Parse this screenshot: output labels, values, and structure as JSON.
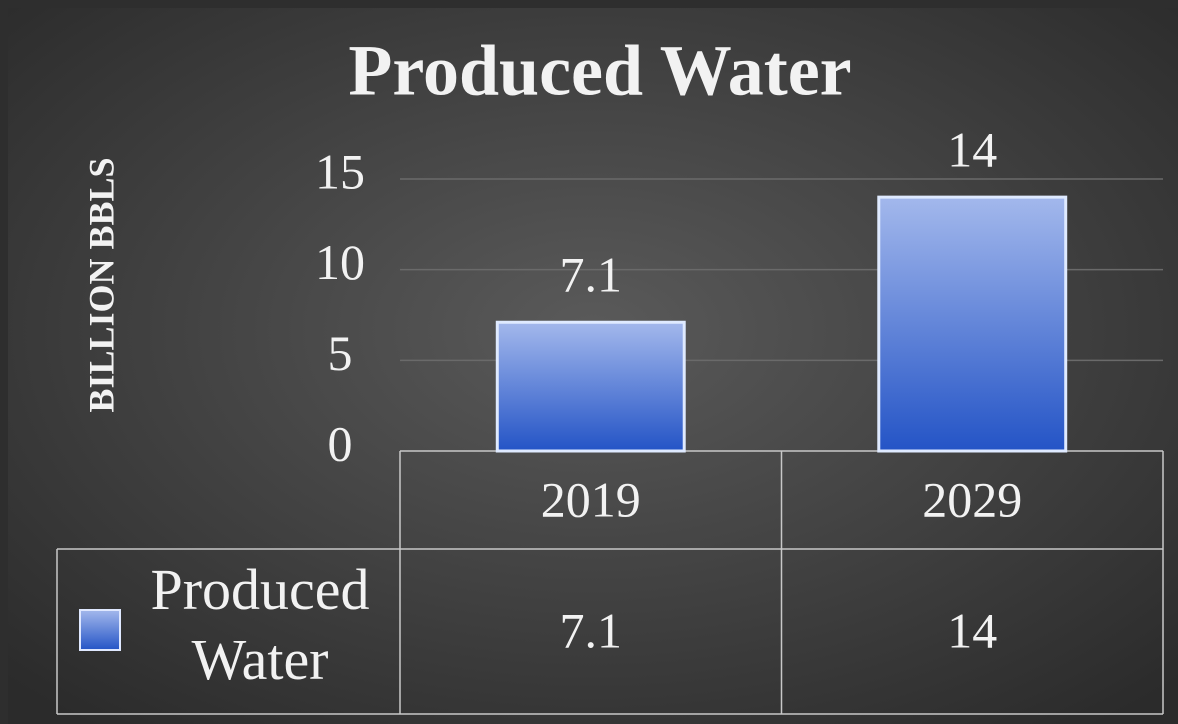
{
  "chart_data": {
    "type": "bar",
    "title": "Produced Water",
    "y_label": "BILLION BBLS",
    "categories": [
      "2019",
      "2029"
    ],
    "series": [
      {
        "name": "Produced Water",
        "color": "#3a6ad6",
        "values": [
          7.1,
          14
        ]
      }
    ],
    "ylim": [
      0,
      15
    ],
    "yticks": [
      0,
      5,
      10,
      15
    ],
    "grid": true
  }
}
